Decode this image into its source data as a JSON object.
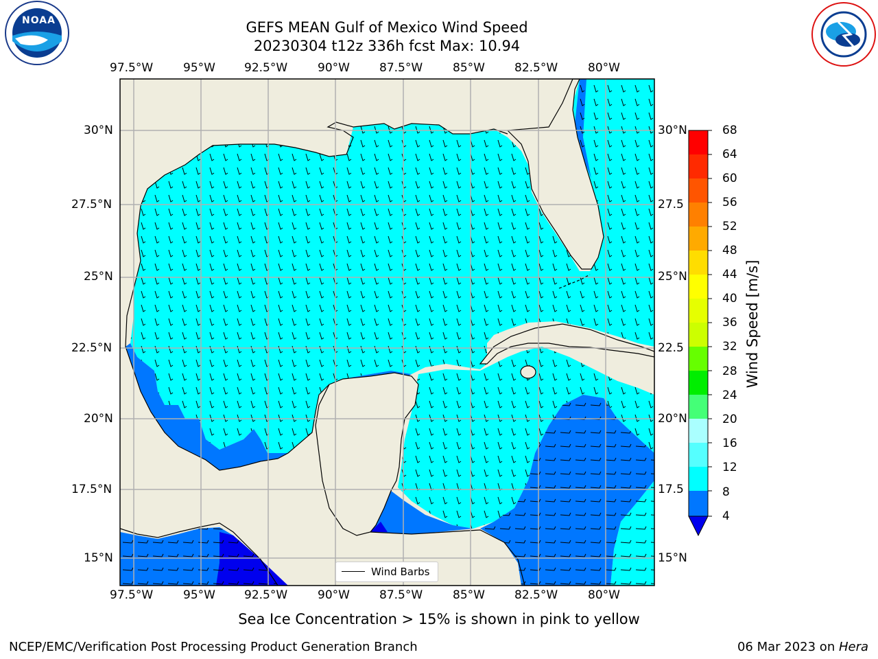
{
  "title": {
    "line1": "GEFS MEAN Gulf of Mexico Wind Speed",
    "line2": "20230304 t12z 336h fcst   Max: 10.94"
  },
  "axes": {
    "lon_ticks": [
      "97.5°W",
      "95°W",
      "92.5°W",
      "90°W",
      "87.5°W",
      "85°W",
      "82.5°W",
      "80°W"
    ],
    "lat_ticks": [
      "30°N",
      "27.5°N",
      "25°N",
      "22.5°N",
      "20°N",
      "17.5°N",
      "15°N"
    ],
    "lat_ticks_right": [
      "30°N",
      "27.5",
      "25°N",
      "22.5",
      "20°N",
      "17.5",
      "15°N"
    ]
  },
  "colorbar": {
    "title": "Wind Speed [m/s]",
    "labels": [
      "68",
      "64",
      "60",
      "56",
      "52",
      "48",
      "44",
      "40",
      "36",
      "32",
      "28",
      "24",
      "20",
      "16",
      "12",
      "8",
      "4"
    ],
    "colors": [
      "#ff0000",
      "#ff2200",
      "#ff4400",
      "#ff6600",
      "#ff8800",
      "#ffaa00",
      "#ffcc00",
      "#ffee00",
      "#ffff00",
      "#eeff00",
      "#ccff00",
      "#aaff00",
      "#66ff00",
      "#00ee00",
      "#44ff77",
      "#99ffcc",
      "#aaffff",
      "#55ffff",
      "#00ffff",
      "#0077ff",
      "#0000ee"
    ]
  },
  "legend": {
    "label": "Wind Barbs"
  },
  "subtitle": "Sea Ice Concentration > 15% is shown in pink to yellow",
  "footer": {
    "left": "NCEP/EMC/Verification Post Processing Product Generation Branch",
    "date": "06 Mar 2023 on ",
    "host": "Hera"
  },
  "map_colors": {
    "land": "#efedde",
    "wind_8_12": "#00ffff",
    "wind_4_8": "#0077ff",
    "wind_0_4": "#0000ee"
  },
  "logos": {
    "left": "NOAA",
    "right": "NATIONAL WEATHER SERVICE"
  }
}
